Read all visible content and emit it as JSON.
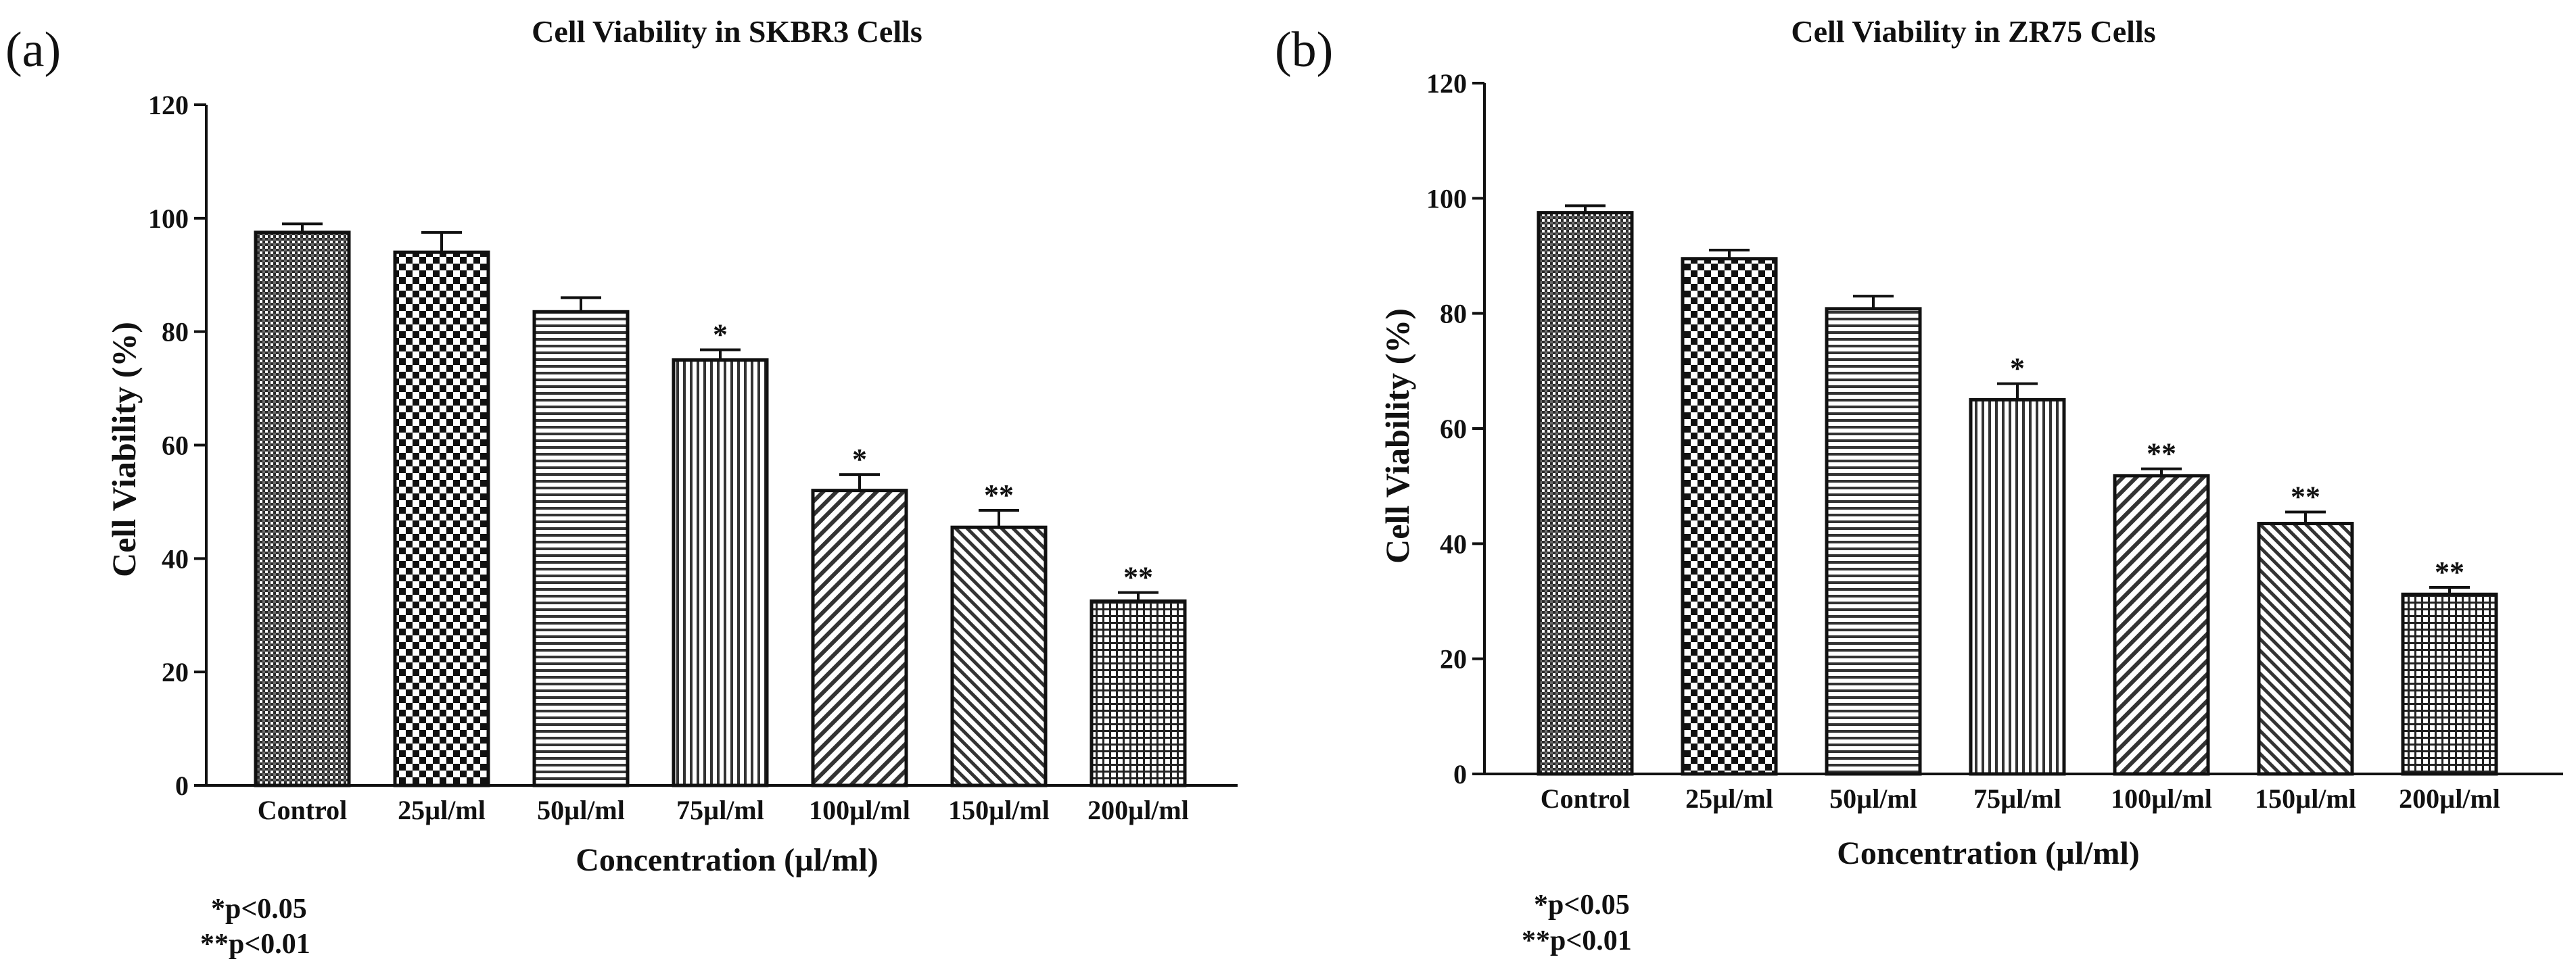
{
  "chart_data": [
    {
      "type": "bar",
      "panel": "(a)",
      "title": "Cell Viability in SKBR3 Cells",
      "xlabel": "Concentration (µl/ml)",
      "ylabel": "Cell Viability (%)",
      "ylim": [
        0,
        120
      ],
      "yticks": [
        0,
        20,
        40,
        60,
        80,
        100,
        120
      ],
      "categories": [
        "Control",
        "25µl/ml",
        "50µl/ml",
        "75µl/ml",
        "100µl/ml",
        "150µl/ml",
        "200µl/ml"
      ],
      "values": [
        97.5,
        94,
        83.5,
        75,
        52,
        45.5,
        32.5
      ],
      "errors": [
        1.5,
        3.5,
        2.5,
        1.8,
        2.8,
        3.0,
        1.5
      ],
      "significance": [
        "",
        "",
        "",
        "*",
        "*",
        "**",
        "**"
      ],
      "notes": [
        "*p<0.05",
        "**p<0.01"
      ]
    },
    {
      "type": "bar",
      "panel": "(b)",
      "title": "Cell Viability in ZR75 Cells",
      "xlabel": "Concentration (µl/ml)",
      "ylabel": "Cell Viability (%)",
      "ylim": [
        0,
        120
      ],
      "yticks": [
        0,
        20,
        40,
        60,
        80,
        100,
        120
      ],
      "categories": [
        "Control",
        "25µl/ml",
        "50µl/ml",
        "75µl/ml",
        "100µl/ml",
        "150µl/ml",
        "200µl/ml"
      ],
      "values": [
        97.5,
        89.5,
        80.8,
        65,
        51.8,
        43.5,
        31.2
      ],
      "errors": [
        1.2,
        1.5,
        2.2,
        2.8,
        1.2,
        2.0,
        1.2
      ],
      "significance": [
        "",
        "",
        "",
        "*",
        "**",
        "**",
        "**"
      ],
      "notes": [
        "*p<0.05",
        "**p<0.01"
      ]
    }
  ]
}
